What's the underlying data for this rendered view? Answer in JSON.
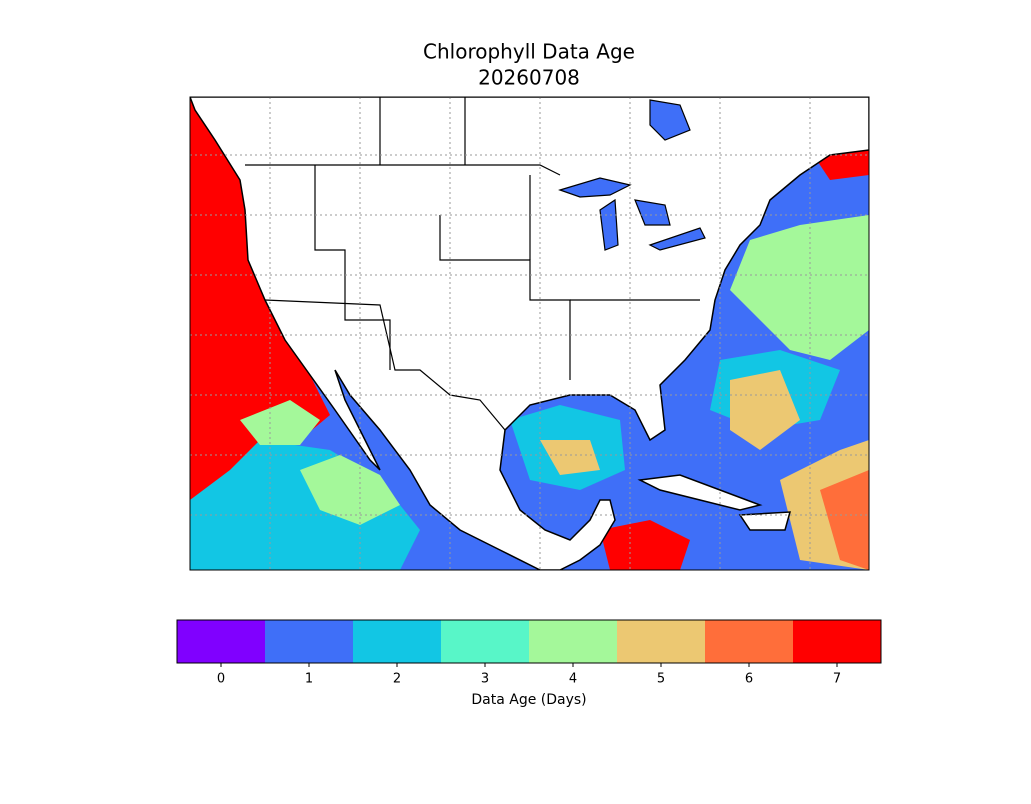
{
  "map": {
    "title": "Chlorophyll Data Age",
    "subtitle": "20260708",
    "colorbar": {
      "label": "Data Age (Days)",
      "lim": [
        -0.5,
        7.5
      ],
      "ticks": [
        0,
        1,
        2,
        3,
        4,
        5,
        6,
        7
      ],
      "colors": [
        "#8000ff",
        "#3f6ff8",
        "#12c6e4",
        "#58f6c8",
        "#a4f89a",
        "#ecc872",
        "#ff6e3a",
        "#ff0000"
      ]
    }
  }
}
